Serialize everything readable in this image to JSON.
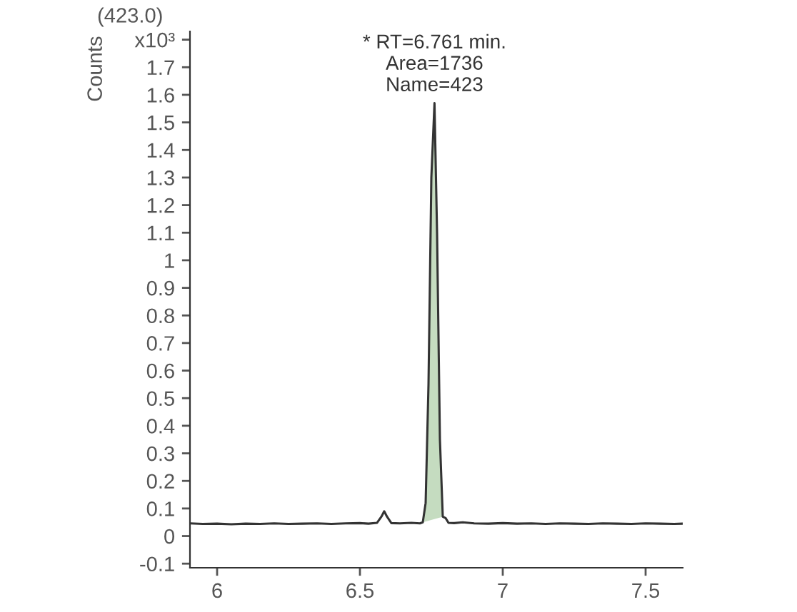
{
  "chart_data": {
    "type": "line",
    "ylabel": "Counts",
    "annotations": [
      "(423.0)",
      {
        "text": "* RT=6.761 min.\nArea=1736\nName=423",
        "x": 6.761,
        "y": 1.57
      }
    ],
    "xlim": [
      5.905,
      7.63
    ],
    "xticks": [
      6,
      6.5,
      7,
      7.5
    ],
    "ylim": [
      -0.115,
      1.83
    ],
    "yticks": [
      -0.1,
      0,
      0.1,
      0.2,
      0.3,
      0.4,
      0.5,
      0.6,
      0.7,
      0.8,
      0.9,
      1,
      1.1,
      1.2,
      1.3,
      1.4,
      1.5,
      1.6,
      1.7,
      {
        "value": 1.8,
        "label": "x10³"
      }
    ],
    "grid": false,
    "legend": false,
    "series": [
      {
        "color": "#333333",
        "x": [
          5.905,
          5.95,
          6.0,
          6.05,
          6.1,
          6.15,
          6.2,
          6.25,
          6.3,
          6.35,
          6.4,
          6.45,
          6.5,
          6.53,
          6.56,
          6.575,
          6.585,
          6.595,
          6.61,
          6.64,
          6.68,
          6.71,
          6.72,
          6.73,
          6.74,
          6.75,
          6.761,
          6.77,
          6.78,
          6.79,
          6.8,
          6.81,
          6.83,
          6.86,
          6.9,
          6.95,
          7.0,
          7.05,
          7.1,
          7.15,
          7.2,
          7.25,
          7.3,
          7.35,
          7.4,
          7.45,
          7.5,
          7.55,
          7.6,
          7.63
        ],
        "values": [
          0.046,
          0.044,
          0.045,
          0.043,
          0.045,
          0.044,
          0.046,
          0.044,
          0.045,
          0.046,
          0.044,
          0.046,
          0.047,
          0.045,
          0.048,
          0.07,
          0.09,
          0.07,
          0.047,
          0.046,
          0.048,
          0.046,
          0.05,
          0.12,
          0.55,
          1.3,
          1.57,
          1.1,
          0.35,
          0.07,
          0.065,
          0.048,
          0.047,
          0.05,
          0.046,
          0.045,
          0.047,
          0.045,
          0.046,
          0.044,
          0.046,
          0.045,
          0.044,
          0.046,
          0.045,
          0.044,
          0.046,
          0.045,
          0.044,
          0.045
        ]
      },
      {
        "type": "area",
        "color": "#c5dcc0",
        "x": [
          6.72,
          6.73,
          6.74,
          6.75,
          6.761,
          6.77,
          6.78,
          6.79
        ],
        "values": [
          0.05,
          0.12,
          0.55,
          1.3,
          1.57,
          1.1,
          0.35,
          0.07
        ]
      }
    ]
  }
}
